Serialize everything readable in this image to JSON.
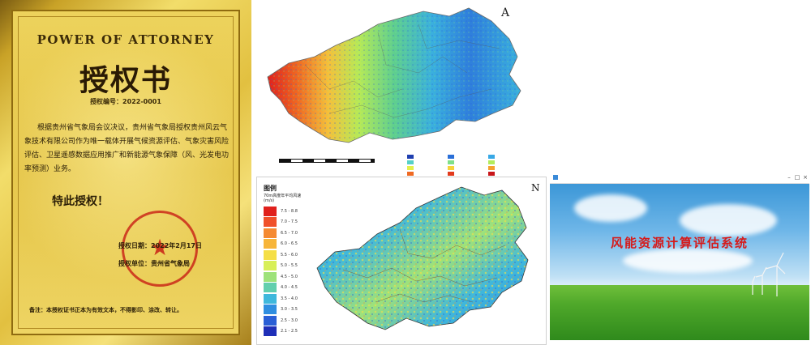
{
  "certificate": {
    "heading_en": "POWER OF ATTORNEY",
    "title": "授权书",
    "number": "授权编号：2022-0001",
    "body": "根据贵州省气象局会议决议，贵州省气象局授权贵州风云气象技术有限公司作为唯一载体开展气候资源评估、气象灾害风险评估、卫星遥感数据应用推广和新能源气象保障（风、光发电功率预测）业务。",
    "special": "特此授权！",
    "date": "授权日期：2022年2月17日",
    "unit": "授权单位：贵州省气象局",
    "note": "备注：本授权证书正本为有效文本，不得影印、涂改、转让。",
    "colors": {
      "gold": "#e6c74a",
      "seal_red": "#c81e14"
    }
  },
  "map_top": {
    "north_label": "A",
    "legend_colors": [
      "#1f3fb0",
      "#2a6fd8",
      "#38a8e6",
      "#56d0c8",
      "#7fe08a",
      "#b2ec5c",
      "#e4f04a",
      "#f6d33a",
      "#f5a12e",
      "#ef6a23",
      "#e23a1c",
      "#c8161a"
    ]
  },
  "map_bottom": {
    "legend_title": "图例",
    "legend_subtitle": "70m高度年平均风速(m/s)",
    "legend": [
      {
        "label": "7.5 - 8.8",
        "color": "#e0201c"
      },
      {
        "label": "7.0 - 7.5",
        "color": "#f0502a"
      },
      {
        "label": "6.5 - 7.0",
        "color": "#f58a32"
      },
      {
        "label": "6.0 - 6.5",
        "color": "#f7b53a"
      },
      {
        "label": "5.5 - 6.0",
        "color": "#f5df46"
      },
      {
        "label": "5.0 - 5.5",
        "color": "#d8ef58"
      },
      {
        "label": "4.5 - 5.0",
        "color": "#9ee27a"
      },
      {
        "label": "4.0 - 4.5",
        "color": "#62cfae"
      },
      {
        "label": "3.5 - 4.0",
        "color": "#3fb8dc"
      },
      {
        "label": "3.0 - 3.5",
        "color": "#2f8ee0"
      },
      {
        "label": "2.5 - 3.0",
        "color": "#2a5fd6"
      },
      {
        "label": "2.1 - 2.5",
        "color": "#1f2fb8"
      }
    ],
    "north_label": "N"
  },
  "app": {
    "title": "风能资源计算评估系统",
    "colors": {
      "sky": "#2f8fd3",
      "grass": "#4fa82a",
      "title": "#d61a1a"
    }
  }
}
